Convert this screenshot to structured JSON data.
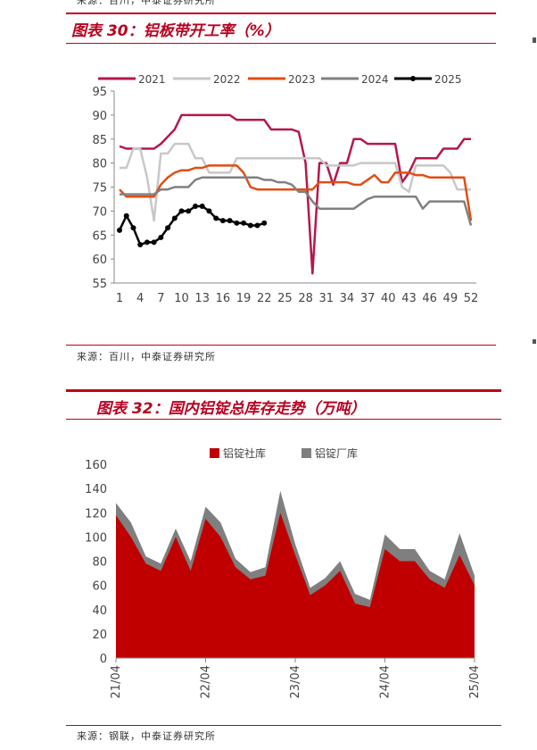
{
  "top_source": "来源：百川，中泰证券研究所",
  "fig30": {
    "title": "图表 30：铝板带开工率（%）",
    "source": "来源：百川，中泰证券研究所"
  },
  "fig32": {
    "title": "图表 32：国内铝锭总库存走势（万吨）",
    "source": "来源：钢联，中泰证券研究所"
  },
  "colors": {
    "accent": "#c0001a",
    "y2021": "#b5174b",
    "y2022": "#c8c8c8",
    "y2023": "#e04e12",
    "y2024": "#808080",
    "y2025": "#000000",
    "social": "#c00000",
    "factory": "#7f7f7f"
  },
  "chart_data": [
    {
      "type": "line",
      "title": "图表 30：铝板带开工率（%）",
      "ylim": [
        55,
        95
      ],
      "yticks": [
        55,
        60,
        65,
        70,
        75,
        80,
        85,
        90,
        95
      ],
      "xticks": [
        1,
        4,
        7,
        10,
        13,
        16,
        19,
        22,
        25,
        28,
        31,
        34,
        37,
        40,
        43,
        46,
        49,
        52
      ],
      "xlim": [
        1,
        52
      ],
      "legend_position": "top",
      "series": [
        {
          "name": "2021",
          "color": "#b5174b",
          "x": [
            1,
            2,
            3,
            4,
            5,
            6,
            7,
            8,
            9,
            10,
            11,
            12,
            13,
            14,
            15,
            16,
            17,
            18,
            19,
            20,
            21,
            22,
            23,
            24,
            25,
            26,
            27,
            28,
            29,
            30,
            31,
            32,
            33,
            34,
            35,
            36,
            37,
            38,
            39,
            40,
            41,
            42,
            43,
            44,
            45,
            46,
            47,
            48,
            49,
            50,
            51,
            52
          ],
          "values": [
            83.5,
            83,
            83,
            83,
            83,
            83,
            84,
            85.5,
            87,
            90,
            90,
            90,
            90,
            90,
            90,
            90,
            90,
            89,
            89,
            89,
            89,
            89,
            87,
            87,
            87,
            87,
            86.5,
            80,
            57,
            80,
            80,
            75.5,
            80,
            80,
            85,
            85,
            84,
            84,
            84,
            84,
            84,
            76,
            78,
            81,
            81,
            81,
            81,
            83,
            83,
            83,
            85,
            85
          ]
        },
        {
          "name": "2022",
          "color": "#c8c8c8",
          "x": [
            1,
            2,
            3,
            4,
            5,
            6,
            7,
            8,
            9,
            10,
            11,
            12,
            13,
            14,
            15,
            16,
            17,
            18,
            19,
            20,
            21,
            22,
            23,
            24,
            25,
            26,
            27,
            28,
            29,
            30,
            31,
            32,
            33,
            34,
            35,
            36,
            37,
            38,
            39,
            40,
            41,
            42,
            43,
            44,
            45,
            46,
            47,
            48,
            49,
            50,
            51,
            52
          ],
          "values": [
            79,
            79,
            83,
            83,
            77,
            68,
            82,
            82,
            84,
            84,
            84,
            81,
            81,
            78,
            78,
            78,
            78,
            81,
            81,
            81,
            81,
            81,
            81,
            81,
            81,
            81,
            81,
            81,
            81,
            81,
            79.5,
            79.5,
            79.5,
            79.5,
            79.5,
            80,
            80,
            80,
            80,
            80,
            80,
            75,
            74,
            79.5,
            79.5,
            79.5,
            79.5,
            79.5,
            78,
            74.5,
            74.5,
            74.5
          ]
        },
        {
          "name": "2023",
          "color": "#e04e12",
          "x": [
            1,
            2,
            3,
            4,
            5,
            6,
            7,
            8,
            9,
            10,
            11,
            12,
            13,
            14,
            15,
            16,
            17,
            18,
            19,
            20,
            21,
            22,
            23,
            24,
            25,
            26,
            27,
            28,
            29,
            30,
            31,
            32,
            33,
            34,
            35,
            36,
            37,
            38,
            39,
            40,
            41,
            42,
            43,
            44,
            45,
            46,
            47,
            48,
            49,
            50,
            51,
            52
          ],
          "values": [
            74.5,
            73,
            73,
            73,
            73,
            73,
            75.5,
            77,
            78,
            78.5,
            78.5,
            79,
            79,
            79.5,
            79.5,
            79.5,
            79.5,
            79.5,
            78,
            75,
            74.5,
            74.5,
            74.5,
            74.5,
            74.5,
            74.5,
            74.5,
            74.5,
            74.5,
            76,
            76,
            76,
            76,
            76,
            75.5,
            75.5,
            76.5,
            77.5,
            76,
            76,
            78,
            78,
            78,
            77.5,
            77.5,
            77,
            77,
            77,
            77,
            77,
            77,
            68
          ]
        },
        {
          "name": "2024",
          "color": "#808080",
          "x": [
            1,
            2,
            3,
            4,
            5,
            6,
            7,
            8,
            9,
            10,
            11,
            12,
            13,
            14,
            15,
            16,
            17,
            18,
            19,
            20,
            21,
            22,
            23,
            24,
            25,
            26,
            27,
            28,
            29,
            30,
            31,
            32,
            33,
            34,
            35,
            36,
            37,
            38,
            39,
            40,
            41,
            42,
            43,
            44,
            45,
            46,
            47,
            48,
            49,
            50,
            51,
            52
          ],
          "values": [
            73.5,
            73.5,
            73.5,
            73.5,
            73.5,
            73.5,
            74.5,
            74.5,
            75,
            75,
            75,
            76.5,
            77,
            77,
            77,
            77,
            77,
            77,
            77,
            77,
            77,
            76.5,
            76.5,
            76,
            76,
            75.5,
            74,
            74,
            72,
            70.5,
            70.5,
            70.5,
            70.5,
            70.5,
            70.5,
            71.5,
            72.5,
            73,
            73,
            73,
            73,
            73,
            73,
            73,
            70.5,
            72,
            72,
            72,
            72,
            72,
            72,
            67
          ]
        },
        {
          "name": "2025",
          "color": "#000000",
          "marker": "circle",
          "x": [
            1,
            2,
            3,
            4,
            5,
            6,
            7,
            8,
            9,
            10,
            11,
            12,
            13,
            14,
            15,
            16,
            17,
            18,
            19,
            20,
            21,
            22
          ],
          "values": [
            66,
            69,
            66.5,
            63,
            63.5,
            63.5,
            64.5,
            66.5,
            68.5,
            70,
            70,
            71,
            71,
            70,
            68.5,
            68,
            68,
            67.5,
            67.5,
            67,
            67,
            67.5
          ]
        }
      ]
    },
    {
      "type": "area",
      "title": "图表 32：国内铝锭总库存走势（万吨）",
      "stacked": true,
      "ylim": [
        0,
        160
      ],
      "yticks": [
        0,
        20,
        40,
        60,
        80,
        100,
        120,
        140,
        160
      ],
      "x": [
        "21/04",
        "21/06",
        "21/08",
        "21/10",
        "21/12",
        "22/02",
        "22/04",
        "22/06",
        "22/08",
        "22/10",
        "22/12",
        "23/02",
        "23/04",
        "23/06",
        "23/08",
        "23/10",
        "23/12",
        "24/02",
        "24/04",
        "24/06",
        "24/08",
        "24/10",
        "24/12",
        "25/02",
        "25/04"
      ],
      "x_tick_labels": [
        "21/04",
        "22/04",
        "23/04",
        "24/04",
        "25/04"
      ],
      "legend_position": "top",
      "series": [
        {
          "name": "铝锭社库",
          "color": "#c00000",
          "values": [
            118,
            100,
            78,
            72,
            100,
            72,
            115,
            100,
            75,
            65,
            68,
            120,
            85,
            52,
            60,
            72,
            45,
            42,
            90,
            80,
            80,
            65,
            58,
            85,
            60
          ]
        },
        {
          "name": "铝锭厂库",
          "color": "#7f7f7f",
          "values": [
            10,
            12,
            6,
            6,
            7,
            8,
            10,
            12,
            7,
            6,
            7,
            18,
            9,
            6,
            6,
            8,
            8,
            6,
            12,
            10,
            10,
            7,
            7,
            18,
            8
          ]
        }
      ]
    }
  ]
}
